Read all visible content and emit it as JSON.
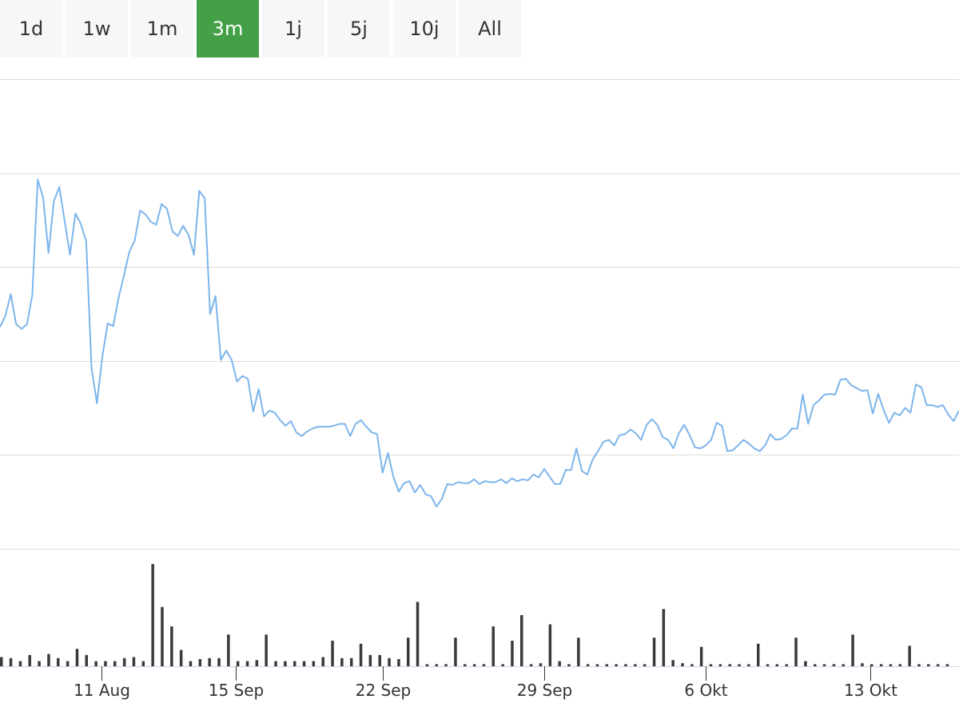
{
  "range_buttons": [
    {
      "label": "1d",
      "active": false
    },
    {
      "label": "1w",
      "active": false
    },
    {
      "label": "1m",
      "active": false
    },
    {
      "label": "3m",
      "active": true
    },
    {
      "label": "1j",
      "active": false
    },
    {
      "label": "5j",
      "active": false
    },
    {
      "label": "10j",
      "active": false
    },
    {
      "label": "All",
      "active": false
    }
  ],
  "colors": {
    "line": "#7cb5ec",
    "volume": "#3a3a3a",
    "grid": "#dddddd",
    "axis": "#ccd6eb",
    "active_button": "#43a047",
    "button": "#f6f7f8"
  },
  "chart_data": [
    {
      "type": "line",
      "title": "",
      "xlabel": "",
      "ylabel": "",
      "x_index_range": [
        0,
        221
      ],
      "x_ticks": [
        {
          "label": "11 Aug",
          "index": 18
        },
        {
          "label": "15 Sep",
          "index": 43
        },
        {
          "label": "22 Sep",
          "index": 70
        },
        {
          "label": "29 Sep",
          "index": 100
        },
        {
          "label": "6 Okt",
          "index": 130
        },
        {
          "label": "13 Okt",
          "index": 160
        }
      ],
      "ylim": [
        0,
        5
      ],
      "y_gridlines": [
        0,
        1,
        2,
        3,
        4,
        5
      ],
      "y_tick_labels": false,
      "grid": true,
      "series": [
        {
          "values": [
            2.36,
            2.48,
            2.71,
            2.39,
            2.34,
            2.39,
            2.7,
            3.93,
            3.74,
            3.15,
            3.7,
            3.85,
            3.49,
            3.13,
            3.57,
            3.46,
            3.27,
            1.92,
            1.55,
            2.05,
            2.4,
            2.37,
            2.67,
            2.91,
            3.16,
            3.28,
            3.6,
            3.56,
            3.48,
            3.45,
            3.67,
            3.62,
            3.38,
            3.33,
            3.44,
            3.34,
            3.13,
            3.81,
            3.73,
            2.5,
            2.69,
            2.01,
            2.11,
            2.01,
            1.78,
            1.84,
            1.81,
            1.46,
            1.7,
            1.41,
            1.47,
            1.45,
            1.37,
            1.31,
            1.36,
            1.24,
            1.2,
            1.25,
            1.28,
            1.3,
            1.3,
            1.3,
            1.31,
            1.33,
            1.33,
            1.2,
            1.33,
            1.37,
            1.3,
            1.24,
            1.22,
            0.81,
            1.02,
            0.77,
            0.61,
            0.7,
            0.72,
            0.6,
            0.68,
            0.58,
            0.56,
            0.45,
            0.53,
            0.69,
            0.68,
            0.71,
            0.7,
            0.7,
            0.74,
            0.69,
            0.72,
            0.71,
            0.71,
            0.74,
            0.7,
            0.75,
            0.72,
            0.74,
            0.73,
            0.79,
            0.76,
            0.85,
            0.77,
            0.69,
            0.69,
            0.84,
            0.84,
            1.07,
            0.83,
            0.79,
            0.95,
            1.04,
            1.14,
            1.16,
            1.1,
            1.21,
            1.22,
            1.27,
            1.23,
            1.16,
            1.32,
            1.38,
            1.32,
            1.19,
            1.16,
            1.07,
            1.23,
            1.32,
            1.21,
            1.08,
            1.07,
            1.1,
            1.16,
            1.34,
            1.31,
            1.04,
            1.05,
            1.1,
            1.16,
            1.12,
            1.07,
            1.04,
            1.1,
            1.22,
            1.16,
            1.17,
            1.21,
            1.28,
            1.28,
            1.64,
            1.33,
            1.53,
            1.58,
            1.64,
            1.65,
            1.64,
            1.8,
            1.81,
            1.74,
            1.71,
            1.68,
            1.69,
            1.44,
            1.65,
            1.48,
            1.34,
            1.45,
            1.42,
            1.5,
            1.45,
            1.75,
            1.72,
            1.53,
            1.53,
            1.51,
            1.53,
            1.43,
            1.36,
            1.47
          ]
        }
      ]
    },
    {
      "type": "bar",
      "title": "",
      "xlabel": "",
      "ylabel": "",
      "ylim": [
        0,
        1
      ],
      "y_tick_labels": false,
      "bars": [
        {
          "index": 0,
          "value": 0.09
        },
        {
          "index": 1,
          "value": 0.08
        },
        {
          "index": 2,
          "value": 0.05
        },
        {
          "index": 3,
          "value": 0.11
        },
        {
          "index": 4,
          "value": 0.05
        },
        {
          "index": 5,
          "value": 0.12
        },
        {
          "index": 6,
          "value": 0.08
        },
        {
          "index": 7,
          "value": 0.05
        },
        {
          "index": 8,
          "value": 0.17
        },
        {
          "index": 9,
          "value": 0.11
        },
        {
          "index": 10,
          "value": 0.05
        },
        {
          "index": 11,
          "value": 0.05
        },
        {
          "index": 12,
          "value": 0.05
        },
        {
          "index": 13,
          "value": 0.08
        },
        {
          "index": 14,
          "value": 0.09
        },
        {
          "index": 15,
          "value": 0.05
        },
        {
          "index": 16,
          "value": 1.0
        },
        {
          "index": 17,
          "value": 0.58
        },
        {
          "index": 18,
          "value": 0.39
        },
        {
          "index": 19,
          "value": 0.16
        },
        {
          "index": 20,
          "value": 0.05
        },
        {
          "index": 21,
          "value": 0.07
        },
        {
          "index": 22,
          "value": 0.08
        },
        {
          "index": 23,
          "value": 0.08
        },
        {
          "index": 24,
          "value": 0.31
        },
        {
          "index": 25,
          "value": 0.05
        },
        {
          "index": 26,
          "value": 0.05
        },
        {
          "index": 27,
          "value": 0.06
        },
        {
          "index": 28,
          "value": 0.31
        },
        {
          "index": 29,
          "value": 0.05
        },
        {
          "index": 30,
          "value": 0.05
        },
        {
          "index": 31,
          "value": 0.05
        },
        {
          "index": 32,
          "value": 0.05
        },
        {
          "index": 33,
          "value": 0.05
        },
        {
          "index": 34,
          "value": 0.09
        },
        {
          "index": 35,
          "value": 0.25
        },
        {
          "index": 36,
          "value": 0.08
        },
        {
          "index": 37,
          "value": 0.08
        },
        {
          "index": 38,
          "value": 0.22
        },
        {
          "index": 39,
          "value": 0.11
        },
        {
          "index": 40,
          "value": 0.11
        },
        {
          "index": 41,
          "value": 0.08
        },
        {
          "index": 42,
          "value": 0.07
        },
        {
          "index": 43,
          "value": 0.28
        },
        {
          "index": 44,
          "value": 0.63
        },
        {
          "index": 45,
          "value": 0.02
        },
        {
          "index": 46,
          "value": 0.02
        },
        {
          "index": 47,
          "value": 0.02
        },
        {
          "index": 48,
          "value": 0.28
        },
        {
          "index": 49,
          "value": 0.02
        },
        {
          "index": 50,
          "value": 0.02
        },
        {
          "index": 51,
          "value": 0.02
        },
        {
          "index": 52,
          "value": 0.39
        },
        {
          "index": 53,
          "value": 0.02
        },
        {
          "index": 54,
          "value": 0.25
        },
        {
          "index": 55,
          "value": 0.5
        },
        {
          "index": 56,
          "value": 0.02
        },
        {
          "index": 57,
          "value": 0.03
        },
        {
          "index": 58,
          "value": 0.41
        },
        {
          "index": 59,
          "value": 0.05
        },
        {
          "index": 60,
          "value": 0.02
        },
        {
          "index": 61,
          "value": 0.28
        },
        {
          "index": 62,
          "value": 0.02
        },
        {
          "index": 63,
          "value": 0.02
        },
        {
          "index": 64,
          "value": 0.02
        },
        {
          "index": 65,
          "value": 0.02
        },
        {
          "index": 66,
          "value": 0.02
        },
        {
          "index": 67,
          "value": 0.02
        },
        {
          "index": 68,
          "value": 0.02
        },
        {
          "index": 69,
          "value": 0.28
        },
        {
          "index": 70,
          "value": 0.56
        },
        {
          "index": 71,
          "value": 0.06
        },
        {
          "index": 72,
          "value": 0.03
        },
        {
          "index": 73,
          "value": 0.02
        },
        {
          "index": 74,
          "value": 0.19
        },
        {
          "index": 75,
          "value": 0.02
        },
        {
          "index": 76,
          "value": 0.02
        },
        {
          "index": 77,
          "value": 0.02
        },
        {
          "index": 78,
          "value": 0.02
        },
        {
          "index": 79,
          "value": 0.02
        },
        {
          "index": 80,
          "value": 0.22
        },
        {
          "index": 81,
          "value": 0.02
        },
        {
          "index": 82,
          "value": 0.02
        },
        {
          "index": 83,
          "value": 0.02
        },
        {
          "index": 84,
          "value": 0.28
        },
        {
          "index": 85,
          "value": 0.05
        },
        {
          "index": 86,
          "value": 0.02
        },
        {
          "index": 87,
          "value": 0.02
        },
        {
          "index": 88,
          "value": 0.02
        },
        {
          "index": 89,
          "value": 0.02
        },
        {
          "index": 90,
          "value": 0.31
        },
        {
          "index": 91,
          "value": 0.03
        },
        {
          "index": 92,
          "value": 0.02
        },
        {
          "index": 93,
          "value": 0.02
        },
        {
          "index": 94,
          "value": 0.02
        },
        {
          "index": 95,
          "value": 0.02
        },
        {
          "index": 96,
          "value": 0.2
        },
        {
          "index": 97,
          "value": 0.02
        },
        {
          "index": 98,
          "value": 0.02
        },
        {
          "index": 99,
          "value": 0.02
        },
        {
          "index": 100,
          "value": 0.02
        }
      ]
    }
  ]
}
